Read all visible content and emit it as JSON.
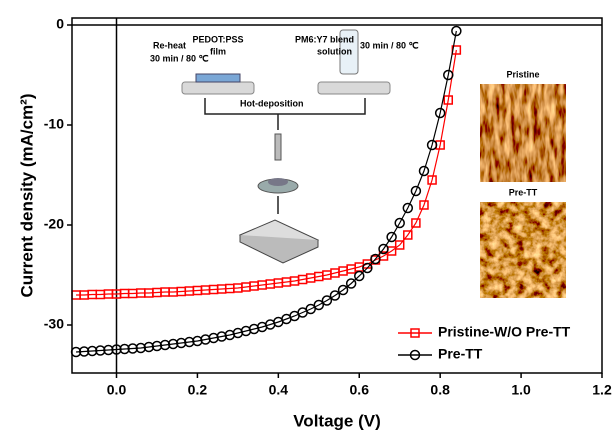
{
  "chart_data": {
    "type": "line",
    "xlabel": "Voltage (V)",
    "ylabel": "Current density  (mA/cm²)",
    "x": [
      -0.1,
      -0.08,
      -0.06,
      -0.04,
      -0.02,
      0.0,
      0.02,
      0.04,
      0.06,
      0.08,
      0.1,
      0.12,
      0.14,
      0.16,
      0.18,
      0.2,
      0.22,
      0.24,
      0.26,
      0.28,
      0.3,
      0.32,
      0.34,
      0.36,
      0.38,
      0.4,
      0.42,
      0.44,
      0.46,
      0.48,
      0.5,
      0.52,
      0.54,
      0.56,
      0.58,
      0.6,
      0.62,
      0.64,
      0.66,
      0.68,
      0.7,
      0.72,
      0.74,
      0.76,
      0.78,
      0.8,
      0.82,
      0.84
    ],
    "series": [
      {
        "name": "Pristine-W/O Pre-TT",
        "color": "#ff0000",
        "marker": "square",
        "values": [
          -27.0,
          -27.0,
          -26.95,
          -26.95,
          -26.9,
          -26.9,
          -26.85,
          -26.85,
          -26.8,
          -26.8,
          -26.75,
          -26.7,
          -26.7,
          -26.65,
          -26.6,
          -26.55,
          -26.5,
          -26.45,
          -26.4,
          -26.35,
          -26.3,
          -26.2,
          -26.1,
          -26.0,
          -25.9,
          -25.8,
          -25.7,
          -25.6,
          -25.45,
          -25.3,
          -25.15,
          -25.0,
          -24.8,
          -24.6,
          -24.4,
          -24.2,
          -23.9,
          -23.5,
          -23.1,
          -22.6,
          -22.0,
          -21.0,
          -19.8,
          -18.0,
          -15.5,
          -12.0,
          -7.5,
          -2.5
        ]
      },
      {
        "name": "Pre-TT",
        "color": "#000000",
        "marker": "circle",
        "values": [
          -32.7,
          -32.65,
          -32.6,
          -32.55,
          -32.5,
          -32.45,
          -32.4,
          -32.35,
          -32.3,
          -32.2,
          -32.1,
          -32.0,
          -31.9,
          -31.8,
          -31.7,
          -31.6,
          -31.45,
          -31.3,
          -31.15,
          -31.0,
          -30.8,
          -30.6,
          -30.4,
          -30.2,
          -29.95,
          -29.7,
          -29.4,
          -29.1,
          -28.75,
          -28.4,
          -28.0,
          -27.55,
          -27.05,
          -26.5,
          -25.85,
          -25.1,
          -24.3,
          -23.4,
          -22.4,
          -21.2,
          -19.8,
          -18.3,
          -16.6,
          -14.6,
          -12.0,
          -8.8,
          -5.0,
          -0.6
        ]
      }
    ],
    "xlim": [
      -0.11,
      1.2
    ],
    "ylim": [
      -34.8,
      0.7
    ],
    "xticks": [
      {
        "value": 0,
        "label": "0.0"
      },
      0.2,
      0.4,
      0.6,
      0.8,
      {
        "value": 1,
        "label": "1.0"
      },
      1.2
    ],
    "yticks": [
      -30,
      -20,
      -10,
      0
    ],
    "legend": "lower right",
    "annotations": [
      "Re-heat",
      "30 min / 80 ℃",
      "PEDOT:PSS",
      "film",
      "PM6:Y7 blend",
      "solution",
      "30 min / 80 ℃",
      "Hot-deposition",
      "Pristine",
      "Pre-TT"
    ]
  }
}
